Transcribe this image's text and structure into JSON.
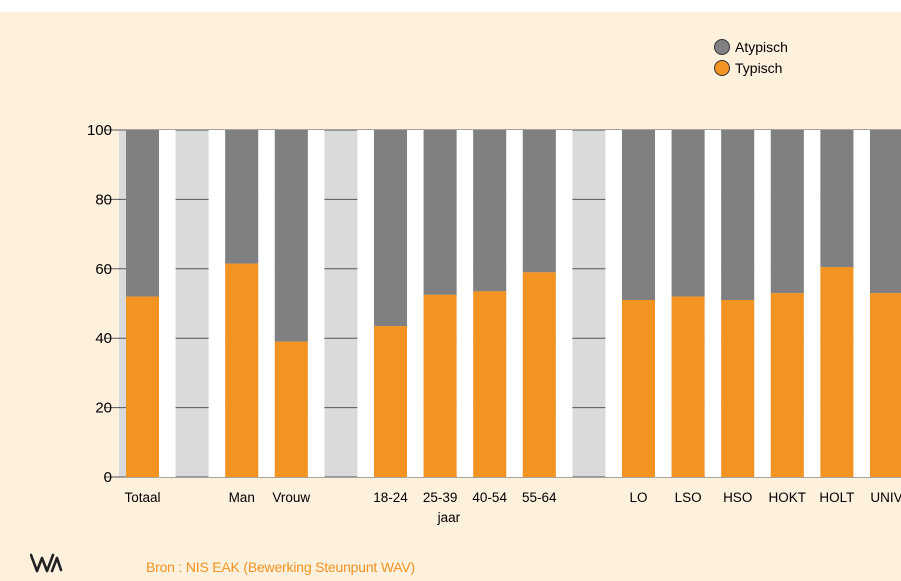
{
  "chart_data": {
    "type": "bar",
    "stacked": true,
    "categories": [
      "Totaal",
      "Man",
      "Vrouw",
      "18-24",
      "25-39",
      "40-54",
      "55-64",
      "LO",
      "LSO",
      "HSO",
      "HOKT",
      "HOLT",
      "UNIV"
    ],
    "age_axis_label": "jaar",
    "series": [
      {
        "name": "Typisch",
        "color": "#f39322",
        "values": [
          52,
          61.5,
          39,
          43.5,
          52.5,
          53.5,
          59,
          51,
          52,
          51,
          53,
          60.5,
          53
        ]
      },
      {
        "name": "Atypisch",
        "color": "#808083",
        "values": [
          48,
          38.5,
          61,
          56.5,
          47.5,
          46.5,
          41,
          49,
          48,
          49,
          47,
          39.5,
          47
        ]
      }
    ],
    "ylim": [
      0,
      100
    ],
    "yticks": [
      0,
      20,
      40,
      60,
      80,
      100
    ],
    "grid": true,
    "legend_position": "top-right",
    "legend": [
      {
        "label": "Atypisch",
        "color": "#808083"
      },
      {
        "label": "Typisch",
        "color": "#f39322"
      }
    ],
    "band_color": "#d9dadb",
    "source": "Bron : NIS EAK (Bewerking Steunpunt WAV)",
    "source_color": "#f39322"
  }
}
